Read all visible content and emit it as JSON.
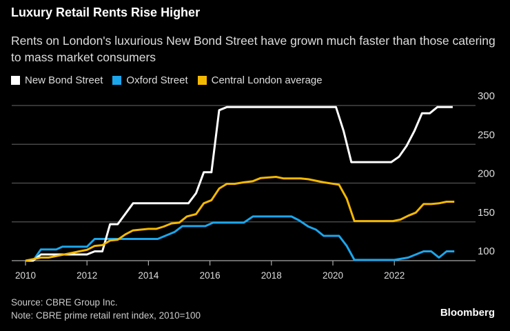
{
  "title": "Luxury Retail Rents Rise Higher",
  "subtitle": "Rents on London's luxurious New Bond Street have grown much faster than those catering to mass market consumers",
  "source": "Source: CBRE Group Inc.",
  "note": "Note: CBRE prime retail rent index, 2010=100",
  "brand": "Bloomberg",
  "chart_data": {
    "type": "line",
    "title": "Luxury Retail Rents Rise Higher",
    "xlabel": "",
    "ylabel": "",
    "xlim": [
      2010,
      2024
    ],
    "ylim": [
      100,
      300
    ],
    "x_ticks": [
      "2010",
      "2012",
      "2014",
      "2016",
      "2018",
      "2020",
      "2022"
    ],
    "y_ticks": [
      "100",
      "150",
      "200",
      "250",
      "300"
    ],
    "grid": true,
    "legend": "top-left",
    "series": [
      {
        "name": "New Bond Street",
        "color": "#ffffff",
        "points": [
          [
            2010.0,
            100
          ],
          [
            2010.25,
            100
          ],
          [
            2010.5,
            108
          ],
          [
            2012.0,
            108
          ],
          [
            2012.25,
            112
          ],
          [
            2012.5,
            112
          ],
          [
            2012.75,
            147
          ],
          [
            2013.0,
            147
          ],
          [
            2013.5,
            174
          ],
          [
            2015.3,
            174
          ],
          [
            2015.55,
            187
          ],
          [
            2015.8,
            214
          ],
          [
            2016.05,
            214
          ],
          [
            2016.3,
            294
          ],
          [
            2016.55,
            298
          ],
          [
            2020.1,
            298
          ],
          [
            2020.35,
            267
          ],
          [
            2020.6,
            227
          ],
          [
            2021.9,
            227
          ],
          [
            2022.15,
            234
          ],
          [
            2022.4,
            248
          ],
          [
            2022.65,
            267
          ],
          [
            2022.9,
            290
          ],
          [
            2023.15,
            290
          ],
          [
            2023.4,
            298
          ],
          [
            2023.9,
            298
          ]
        ]
      },
      {
        "name": "Oxford Street",
        "color": "#1ba6ec",
        "points": [
          [
            2010.0,
            100
          ],
          [
            2010.25,
            100
          ],
          [
            2010.5,
            114.5
          ],
          [
            2011.0,
            114.5
          ],
          [
            2011.2,
            118
          ],
          [
            2012.0,
            118
          ],
          [
            2012.25,
            128
          ],
          [
            2014.3,
            128
          ],
          [
            2014.85,
            137
          ],
          [
            2015.1,
            144.5
          ],
          [
            2015.85,
            144.5
          ],
          [
            2016.1,
            149
          ],
          [
            2017.1,
            149
          ],
          [
            2017.4,
            157
          ],
          [
            2018.65,
            157
          ],
          [
            2018.9,
            152
          ],
          [
            2019.2,
            144
          ],
          [
            2019.45,
            140
          ],
          [
            2019.7,
            132
          ],
          [
            2020.2,
            132
          ],
          [
            2020.45,
            119
          ],
          [
            2020.7,
            101
          ],
          [
            2022.0,
            101
          ],
          [
            2022.45,
            104
          ],
          [
            2022.95,
            112
          ],
          [
            2023.2,
            112
          ],
          [
            2023.45,
            104
          ],
          [
            2023.7,
            112
          ],
          [
            2023.95,
            112
          ]
        ]
      },
      {
        "name": "Central London average",
        "color": "#f5b800",
        "points": [
          [
            2010.0,
            100
          ],
          [
            2010.25,
            102
          ],
          [
            2010.5,
            104
          ],
          [
            2010.75,
            104
          ],
          [
            2011.0,
            106
          ],
          [
            2011.5,
            110
          ],
          [
            2011.75,
            112
          ],
          [
            2012.0,
            114
          ],
          [
            2012.25,
            119
          ],
          [
            2012.5,
            120
          ],
          [
            2012.75,
            126
          ],
          [
            2013.0,
            127
          ],
          [
            2013.25,
            134
          ],
          [
            2013.5,
            139
          ],
          [
            2013.75,
            140
          ],
          [
            2014.0,
            141
          ],
          [
            2014.25,
            141
          ],
          [
            2014.5,
            144
          ],
          [
            2014.75,
            148
          ],
          [
            2015.0,
            149
          ],
          [
            2015.25,
            157
          ],
          [
            2015.55,
            160
          ],
          [
            2015.8,
            174
          ],
          [
            2016.05,
            178
          ],
          [
            2016.3,
            193
          ],
          [
            2016.55,
            199
          ],
          [
            2016.8,
            199
          ],
          [
            2017.1,
            201
          ],
          [
            2017.4,
            202.5
          ],
          [
            2017.65,
            206.5
          ],
          [
            2018.15,
            208
          ],
          [
            2018.4,
            206
          ],
          [
            2018.95,
            206
          ],
          [
            2019.2,
            205
          ],
          [
            2019.7,
            201
          ],
          [
            2020.2,
            198
          ],
          [
            2020.45,
            180
          ],
          [
            2020.7,
            151
          ],
          [
            2021.95,
            151
          ],
          [
            2022.2,
            153
          ],
          [
            2022.45,
            158
          ],
          [
            2022.7,
            162
          ],
          [
            2022.95,
            173
          ],
          [
            2023.2,
            173
          ],
          [
            2023.45,
            174
          ],
          [
            2023.7,
            176
          ],
          [
            2023.95,
            176
          ]
        ]
      }
    ]
  }
}
